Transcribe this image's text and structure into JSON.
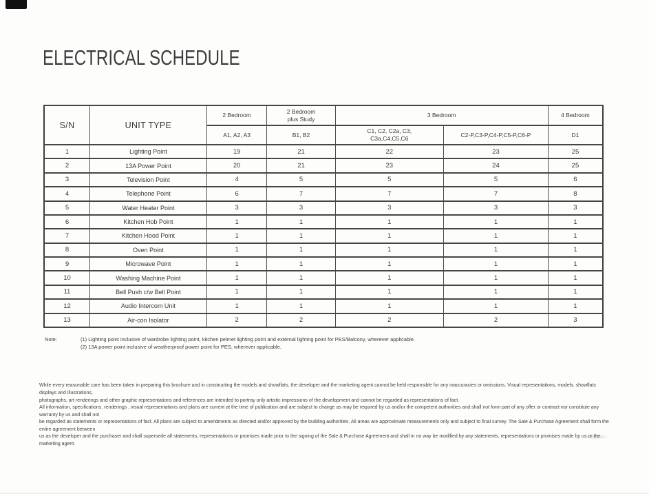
{
  "page": {
    "title": "ELECTRICAL SCHEDULE"
  },
  "table": {
    "header": {
      "sn": "S/N",
      "unit_type": "UNIT TYPE",
      "groups": [
        {
          "label": "2 Bedroom"
        },
        {
          "label": "2 Bedroom\nplus Study"
        },
        {
          "label": "3 Bedroom"
        },
        {
          "label": "4 Bedroom"
        }
      ],
      "subcols": [
        "A1, A2, A3",
        "B1, B2",
        "C1, C2, C2a, C3,\nC3a,C4,C5,C6",
        "C2-P,C3-P,C4-P,C5-P,C6-P",
        "D1"
      ]
    },
    "rows": [
      {
        "sn": "1",
        "unit_type": "Lighting Point",
        "values": [
          "19",
          "21",
          "22",
          "23",
          "25"
        ]
      },
      {
        "sn": "2",
        "unit_type": "13A Power Point",
        "values": [
          "20",
          "21",
          "23",
          "24",
          "25"
        ]
      },
      {
        "sn": "3",
        "unit_type": "Television Point",
        "values": [
          "4",
          "5",
          "5",
          "5",
          "6"
        ]
      },
      {
        "sn": "4",
        "unit_type": "Telephone Point",
        "values": [
          "6",
          "7",
          "7",
          "7",
          "8"
        ]
      },
      {
        "sn": "5",
        "unit_type": "Water Heater Point",
        "values": [
          "3",
          "3",
          "3",
          "3",
          "3"
        ]
      },
      {
        "sn": "6",
        "unit_type": "Kitchen Hob Point",
        "values": [
          "1",
          "1",
          "1",
          "1",
          "1"
        ]
      },
      {
        "sn": "7",
        "unit_type": "Kitchen Hood Point",
        "values": [
          "1",
          "1",
          "1",
          "1",
          "1"
        ]
      },
      {
        "sn": "8",
        "unit_type": "Oven Point",
        "values": [
          "1",
          "1",
          "1",
          "1",
          "1"
        ]
      },
      {
        "sn": "9",
        "unit_type": "Microwave Point",
        "values": [
          "1",
          "1",
          "1",
          "1",
          "1"
        ]
      },
      {
        "sn": "10",
        "unit_type": "Washing Machine Point",
        "values": [
          "1",
          "1",
          "1",
          "1",
          "1"
        ]
      },
      {
        "sn": "11",
        "unit_type": "Bell Push c/w Bell Point",
        "values": [
          "1",
          "1",
          "1",
          "1",
          "1"
        ]
      },
      {
        "sn": "12",
        "unit_type": "Audio Intercom Unit",
        "values": [
          "1",
          "1",
          "1",
          "1",
          "1"
        ]
      },
      {
        "sn": "13",
        "unit_type": "Air-con Isolator",
        "values": [
          "2",
          "2",
          "2",
          "2",
          "3"
        ]
      }
    ]
  },
  "notes": {
    "label": "Note:",
    "lines": [
      "(1) Lighting point inclusive of wardrobe lighting point, kitchen pelmet lighting point and external lighting point for PES/Balcony, wherever applicable.",
      "(2) 13A power point inclusive of weatherproof power point for PES, wherever applicable."
    ]
  },
  "disclaimer": {
    "para1": [
      "While every reasonable care has been taken in preparing this brochure and in constructing the models and showflats, the developer and the marketing agent cannot be held responsible for any inaccuracies or omissions. Visual representations, models. showflats displays and illustrations,",
      "photographs, art renderings and other graphic representations and references are intended to portray only artistic impressions of the development and cannot be regarded as representations of fact."
    ],
    "para2": [
      "All information, specifications, renderings , visual representations and plans are  current at the time of publication and are subject to change as may be required by us and/or the competent authorities and shall not form part of any offer or contract nor constitute any warranty by us and shall not",
      "be regarded as statements or representations of fact. All plans are subject to amendments as directed and/or approved by the building authorities. All areas are approximate measurements only and subject to final survey. The Sale & Purchase Agreement shall form the entire agreement between",
      "us as the developer and the purchaser and shall supersede all statements, representations or promises made prior to the signing of the Sale & Purchase Agreement and shall in no way be modified by any statements, representations or promises made by us or the marketing agent."
    ]
  }
}
